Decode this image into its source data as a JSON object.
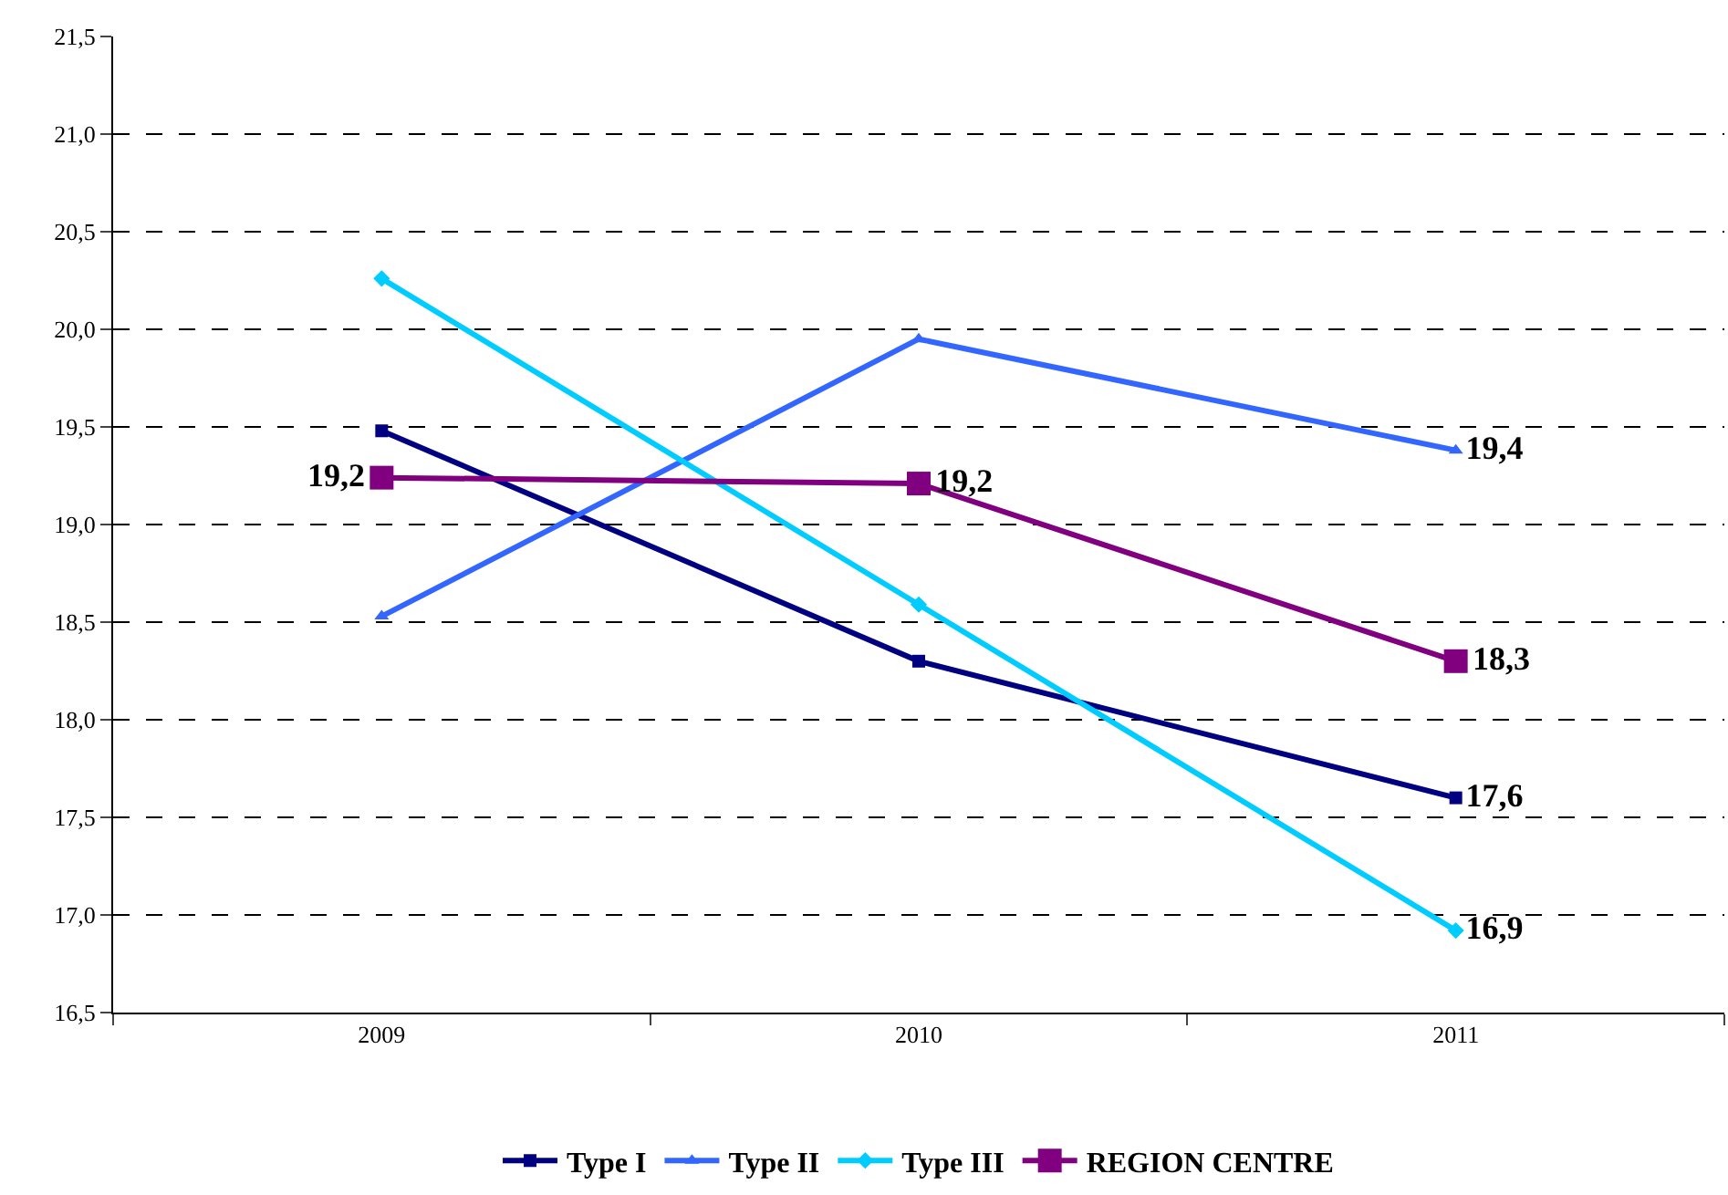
{
  "chart_data": {
    "type": "line",
    "categories": [
      "2009",
      "2010",
      "2011"
    ],
    "series": [
      {
        "name": "Type I",
        "color": "#000080",
        "marker": "square",
        "values": [
          19.48,
          18.3,
          17.6
        ],
        "value_labels": [
          null,
          null,
          "17,6"
        ]
      },
      {
        "name": "Type II",
        "color": "#3366ff",
        "marker": "triangle",
        "values": [
          18.53,
          19.95,
          19.38
        ],
        "value_labels": [
          null,
          null,
          "19,4"
        ]
      },
      {
        "name": "Type III",
        "color": "#00ccff",
        "marker": "diamond",
        "values": [
          20.26,
          18.59,
          16.92
        ],
        "value_labels": [
          null,
          null,
          "16,9"
        ]
      },
      {
        "name": "REGION CENTRE",
        "color": "#800080",
        "marker": "square",
        "values": [
          19.24,
          19.21,
          18.3
        ],
        "value_labels": [
          "19,2",
          "19,2",
          "18,3"
        ]
      }
    ],
    "ylim": [
      16.5,
      21.5
    ],
    "yticks": [
      {
        "value": 16.5,
        "label": "16,5"
      },
      {
        "value": 17,
        "label": "17,0"
      },
      {
        "value": 17.5,
        "label": "17,5"
      },
      {
        "value": 18,
        "label": "18,0"
      },
      {
        "value": 18.5,
        "label": "18,5"
      },
      {
        "value": 19,
        "label": "19,0"
      },
      {
        "value": 19.5,
        "label": "19,5"
      },
      {
        "value": 20,
        "label": "20,0"
      },
      {
        "value": 20.5,
        "label": "20,5"
      },
      {
        "value": 21,
        "label": "21,0"
      },
      {
        "value": 21.5,
        "label": "21,5"
      }
    ],
    "grid": "y",
    "legend": "bottom",
    "line_style": "solid"
  }
}
